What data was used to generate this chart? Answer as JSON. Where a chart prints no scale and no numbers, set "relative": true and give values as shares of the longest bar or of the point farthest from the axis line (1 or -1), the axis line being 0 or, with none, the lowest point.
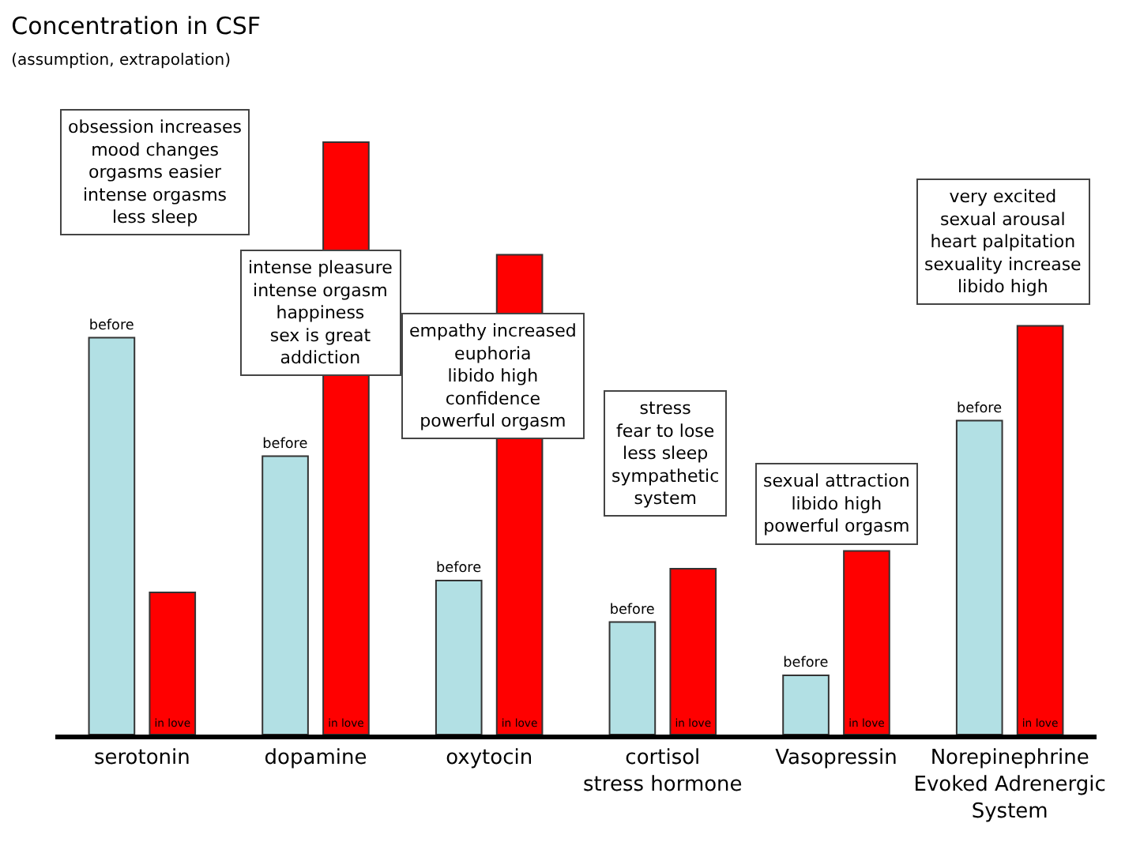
{
  "chart_data": {
    "type": "bar",
    "title": "Concentration in CSF",
    "subtitle": "(assumption, extrapolation)",
    "categories": [
      "serotonin",
      "dopamine",
      "oxytocin",
      "cortisol\nstress hormone",
      "Vasopressin",
      "Norepinephrine\nEvoked Adrenergic\nSystem"
    ],
    "relative": true,
    "legend": false,
    "series": [
      {
        "name": "before",
        "color": "#b2e0e4",
        "values": [
          0.67,
          0.47,
          0.26,
          0.19,
          0.1,
          0.53
        ]
      },
      {
        "name": "in love",
        "color": "#ff0000",
        "values": [
          0.24,
          1.0,
          0.81,
          0.28,
          0.31,
          0.69
        ]
      }
    ],
    "annotations": [
      "obsession increases\nmood changes\norgasms easier\nintense orgasms\nless sleep",
      "intense pleasure\nintense orgasm\nhappiness\nsex is great\naddiction",
      "empathy increased\neuphoria\nlibido high\nconfidence\npowerful orgasm",
      "stress\nfear to lose\nless sleep\nsympathetic\nsystem",
      "sexual attraction\nlibido high\npowerful orgasm",
      "very excited\nsexual arousal\nheart palpitation\nsexuality increase\nlibido high"
    ]
  }
}
